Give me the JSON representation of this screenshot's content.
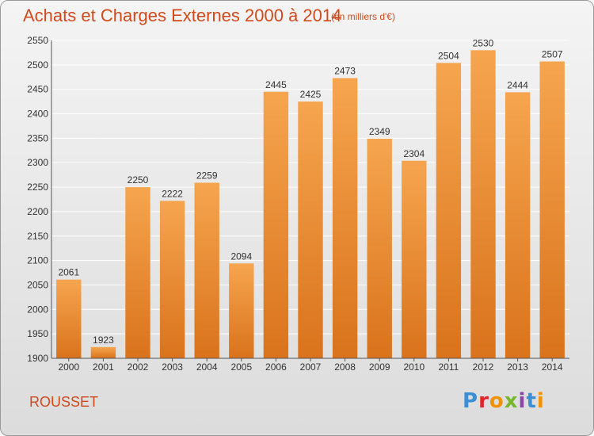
{
  "header": {
    "title": "Achats et Charges Externes 2000 à 2014",
    "subtitle": "(en milliers d'€)"
  },
  "footer": {
    "commune": "ROUSSET",
    "logo": "Proxiti"
  },
  "colors": {
    "bar_top": "#f6a54f",
    "bar_bottom": "#d9731c",
    "title": "#d24a1c",
    "grid": "#ffffff"
  },
  "chart_data": {
    "type": "bar",
    "title": "Achats et Charges Externes 2000 à 2014",
    "subtitle": "(en milliers d'€)",
    "categories": [
      "2000",
      "2001",
      "2002",
      "2003",
      "2004",
      "2005",
      "2006",
      "2007",
      "2008",
      "2009",
      "2010",
      "2011",
      "2012",
      "2013",
      "2014"
    ],
    "values": [
      2061,
      1923,
      2250,
      2222,
      2259,
      2094,
      2445,
      2425,
      2473,
      2349,
      2304,
      2504,
      2530,
      2444,
      2507
    ],
    "ylim": [
      1900,
      2550
    ],
    "yticks": [
      1900,
      1950,
      2000,
      2050,
      2100,
      2150,
      2200,
      2250,
      2300,
      2350,
      2400,
      2450,
      2500,
      2550
    ],
    "grid": true,
    "data_labels": true
  }
}
